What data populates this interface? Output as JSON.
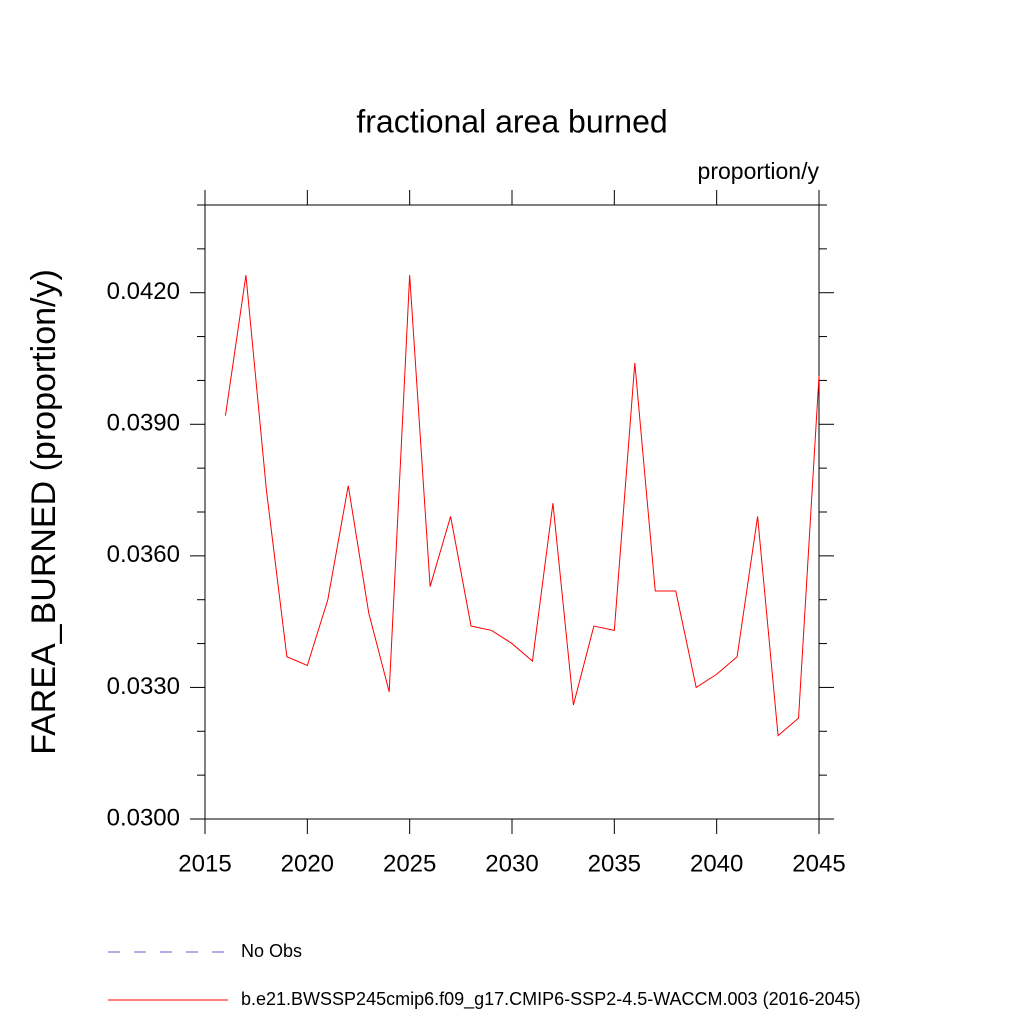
{
  "chart_data": {
    "type": "line",
    "title": "fractional area burned",
    "subtitle": "proportion/y",
    "y_label": "FAREA_BURNED  (proportion/y)",
    "x": [
      2016,
      2017,
      2018,
      2019,
      2020,
      2021,
      2022,
      2023,
      2024,
      2025,
      2026,
      2027,
      2028,
      2029,
      2030,
      2031,
      2032,
      2033,
      2034,
      2035,
      2036,
      2037,
      2038,
      2039,
      2040,
      2041,
      2042,
      2043,
      2044,
      2045
    ],
    "series": [
      {
        "name": "b.e21.BWSSP245cmip6.f09_g17.CMIP6-SSP2-4.5-WACCM.003 (2016-2045)",
        "color": "#ff0000",
        "values": [
          0.0392,
          0.0424,
          0.0375,
          0.0337,
          0.0335,
          0.035,
          0.0376,
          0.0347,
          0.0329,
          0.0424,
          0.0353,
          0.0369,
          0.0344,
          0.0343,
          0.034,
          0.0336,
          0.0372,
          0.0326,
          0.0344,
          0.0343,
          0.0404,
          0.0352,
          0.0352,
          0.033,
          0.0333,
          0.0337,
          0.0369,
          0.0319,
          0.0323,
          0.0401
        ]
      }
    ],
    "legend_extra": [
      {
        "name": "No Obs",
        "color": "#6a5acd",
        "line_style": "dashed"
      }
    ],
    "xlim": [
      2015,
      2045
    ],
    "xticks": [
      2015,
      2020,
      2025,
      2030,
      2035,
      2040,
      2045
    ],
    "ylim": [
      0.03,
      0.044
    ],
    "yticks": [
      {
        "value": 0.03,
        "label": "0.0300"
      },
      {
        "value": 0.033,
        "label": "0.0330"
      },
      {
        "value": 0.036,
        "label": "0.0360"
      },
      {
        "value": 0.039,
        "label": "0.0390"
      },
      {
        "value": 0.042,
        "label": "0.0420"
      }
    ],
    "yminorticks": [
      0.031,
      0.032,
      0.034,
      0.035,
      0.037,
      0.038,
      0.04,
      0.041,
      0.043,
      0.044
    ]
  }
}
